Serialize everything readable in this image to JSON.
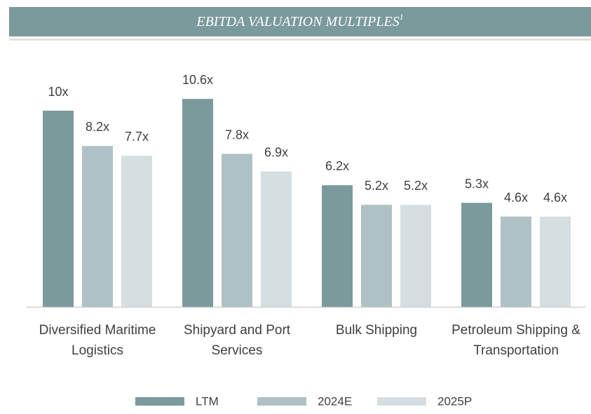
{
  "chart_data": {
    "type": "bar",
    "title": "EBITDA VALUATION MULTIPLES",
    "title_footnote": "1",
    "categories": [
      "Diversified Maritime Logistics",
      "Shipyard and Port Services",
      "Bulk Shipping",
      "Petroleum Shipping & Transportation"
    ],
    "series": [
      {
        "name": "LTM",
        "color": "#7b9a9b",
        "values": [
          10,
          10.6,
          6.2,
          5.3
        ],
        "value_labels": [
          "10x",
          "10.6x",
          "6.2x",
          "5.3x"
        ]
      },
      {
        "name": "2024E",
        "color": "#afc1c4",
        "values": [
          8.2,
          7.8,
          5.2,
          4.6
        ],
        "value_labels": [
          "8.2x",
          "7.8x",
          "5.2x",
          "4.6x"
        ]
      },
      {
        "name": "2025P",
        "color": "#d5dfe1",
        "values": [
          7.7,
          6.9,
          5.2,
          4.6
        ],
        "value_labels": [
          "7.7x",
          "6.9x",
          "5.2x",
          "4.6x"
        ]
      }
    ],
    "legend": "bottom"
  }
}
